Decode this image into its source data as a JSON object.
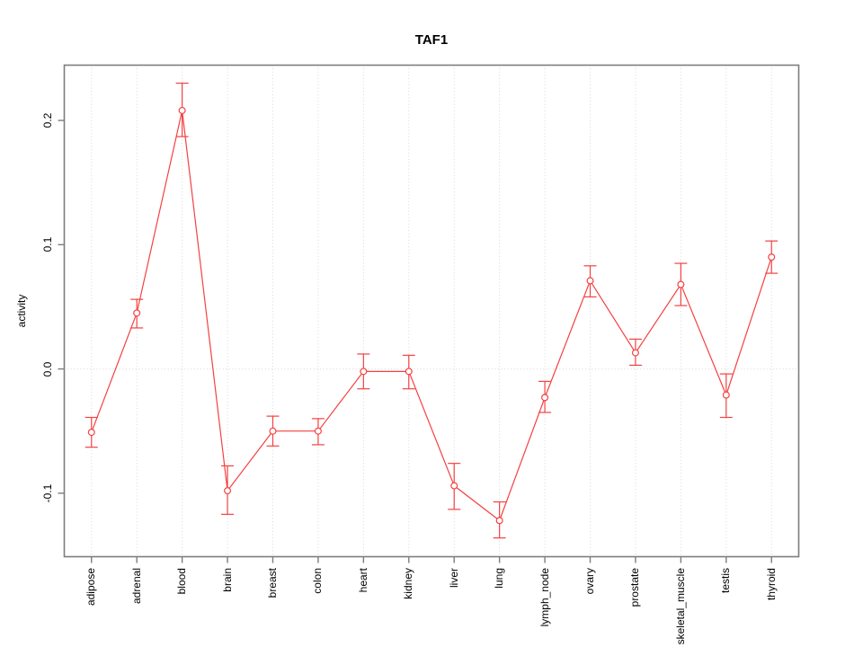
{
  "chart_data": {
    "type": "line",
    "title": "TAF1",
    "xlabel": "",
    "ylabel": "activity",
    "categories": [
      "adipose",
      "adrenal",
      "blood",
      "brain",
      "breast",
      "colon",
      "heart",
      "kidney",
      "liver",
      "lung",
      "lymph_node",
      "ovary",
      "prostate",
      "skeletal_muscle",
      "testis",
      "thyroid"
    ],
    "series": [
      {
        "name": "TAF1",
        "values": [
          -0.051,
          0.045,
          0.208,
          -0.098,
          -0.05,
          -0.05,
          -0.002,
          -0.002,
          -0.094,
          -0.122,
          -0.023,
          0.071,
          0.013,
          0.068,
          -0.021,
          0.09
        ],
        "error_low": [
          -0.063,
          0.033,
          0.187,
          -0.117,
          -0.062,
          -0.061,
          -0.016,
          -0.016,
          -0.113,
          -0.136,
          -0.035,
          0.058,
          0.003,
          0.051,
          -0.039,
          0.077
        ],
        "error_high": [
          -0.039,
          0.056,
          0.23,
          -0.078,
          -0.038,
          -0.04,
          0.012,
          0.011,
          -0.076,
          -0.107,
          -0.01,
          0.083,
          0.024,
          0.085,
          -0.004,
          0.103
        ]
      }
    ],
    "xlim": [
      0.4,
      16.6
    ],
    "ylim": [
      -0.1511,
      0.2445
    ],
    "yticks": [
      -0.1,
      0.0,
      0.1,
      0.2
    ],
    "grid": {
      "vertical_lines": "dotted at each category",
      "horizontal_line_at": 0.0
    },
    "legend": "none",
    "marker": "open-circle",
    "colors": {
      "series": "#f44141",
      "marker_fill": "#ffffff",
      "grid": "#d8d8d8",
      "frame": "#7d7d7d",
      "text": "#000000",
      "background": "#ffffff"
    }
  }
}
